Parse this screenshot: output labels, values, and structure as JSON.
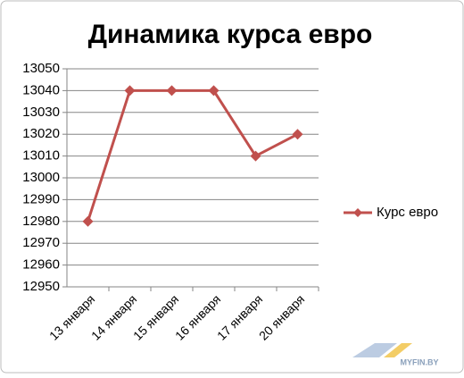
{
  "chart_data": {
    "type": "line",
    "title": "Динамика курса евро",
    "categories": [
      "13 января",
      "14 января",
      "15 января",
      "16 января",
      "17 января",
      "20 января"
    ],
    "series": [
      {
        "name": "Курс евро",
        "color": "#c0504d",
        "values": [
          12980,
          13040,
          13040,
          13040,
          13010,
          13020
        ]
      }
    ],
    "ylim": [
      12950,
      13050
    ],
    "yticks": [
      12950,
      12960,
      12970,
      12980,
      12990,
      13000,
      13010,
      13020,
      13030,
      13040,
      13050
    ],
    "grid": true,
    "legend": "right",
    "watermark": "MYFIN.BY"
  }
}
